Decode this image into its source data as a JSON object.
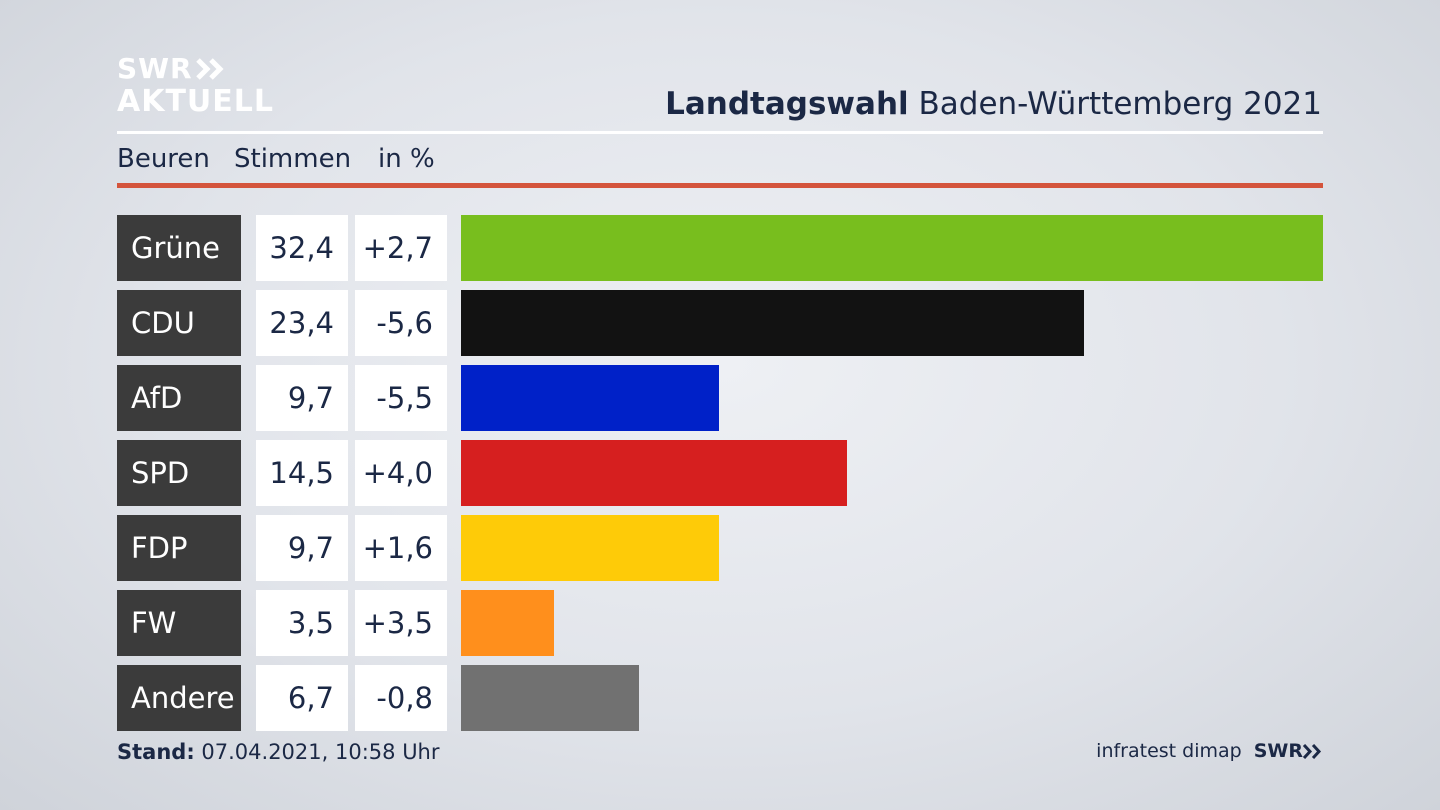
{
  "brand": {
    "line1": "SWR",
    "line2": "AKTUELL"
  },
  "title": {
    "bold": "Landtagswahl",
    "rest": "Baden-Württemberg 2021"
  },
  "subheader": {
    "location": "Beuren",
    "metric": "Stimmen",
    "unit": "in %"
  },
  "footer": {
    "stand_label": "Stand:",
    "stand_value": "07.04.2021, 10:58 Uhr",
    "source": "infratest dimap",
    "source_brand": "SWR"
  },
  "colors": {
    "accent_rule": "#d4543c",
    "label_bg": "#3b3b3b",
    "text": "#1b2845"
  },
  "chart_data": {
    "type": "bar",
    "orientation": "horizontal",
    "unit": "%",
    "categories": [
      "Grüne",
      "CDU",
      "AfD",
      "SPD",
      "FDP",
      "FW",
      "Andere"
    ],
    "values": [
      32.4,
      23.4,
      9.7,
      14.5,
      9.7,
      3.5,
      6.7
    ],
    "value_labels": [
      "32,4",
      "23,4",
      "9,7",
      "14,5",
      "9,7",
      "3,5",
      "6,7"
    ],
    "change": [
      2.7,
      -5.6,
      -5.5,
      4.0,
      1.6,
      3.5,
      -0.8
    ],
    "change_labels": [
      "+2,7",
      "-5,6",
      "-5,5",
      "+4,0",
      "+1,6",
      "+3,5",
      "-0,8"
    ],
    "bar_colors": [
      "#78be1e",
      "#121212",
      "#0021c8",
      "#d61f1f",
      "#fecb08",
      "#ff8f1c",
      "#717171"
    ],
    "xlim": [
      0,
      32.4
    ],
    "grid": false,
    "legend": "none"
  }
}
